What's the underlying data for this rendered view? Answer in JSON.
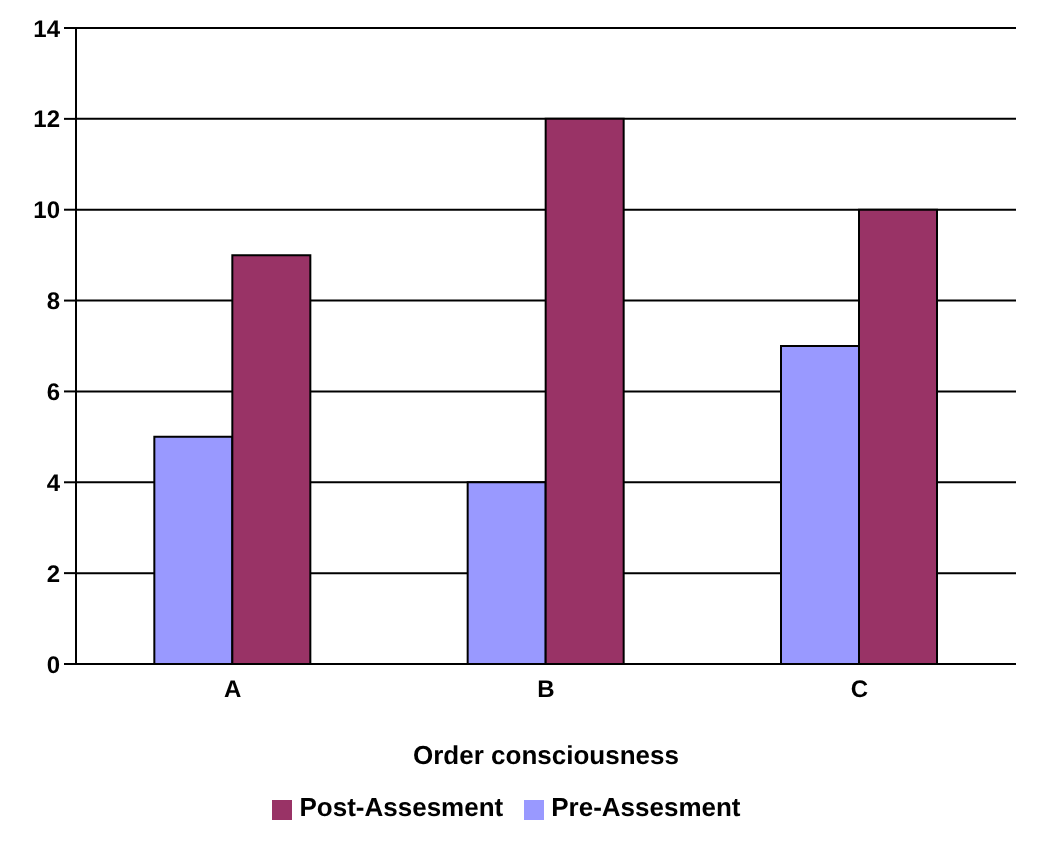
{
  "chart_data": {
    "type": "bar",
    "xlabel": "Order consciousness",
    "categories": [
      "A",
      "B",
      "C"
    ],
    "series": [
      {
        "name": "Pre-Assesment",
        "color": "#9999ff",
        "values": [
          5,
          4,
          7
        ]
      },
      {
        "name": "Post-Assesment",
        "color": "#993366",
        "values": [
          9,
          12,
          10
        ]
      }
    ],
    "ylim": [
      0,
      14
    ],
    "yticks": [
      0,
      2,
      4,
      6,
      8,
      10,
      12,
      14
    ],
    "grid": "y",
    "legend": "bottom"
  }
}
